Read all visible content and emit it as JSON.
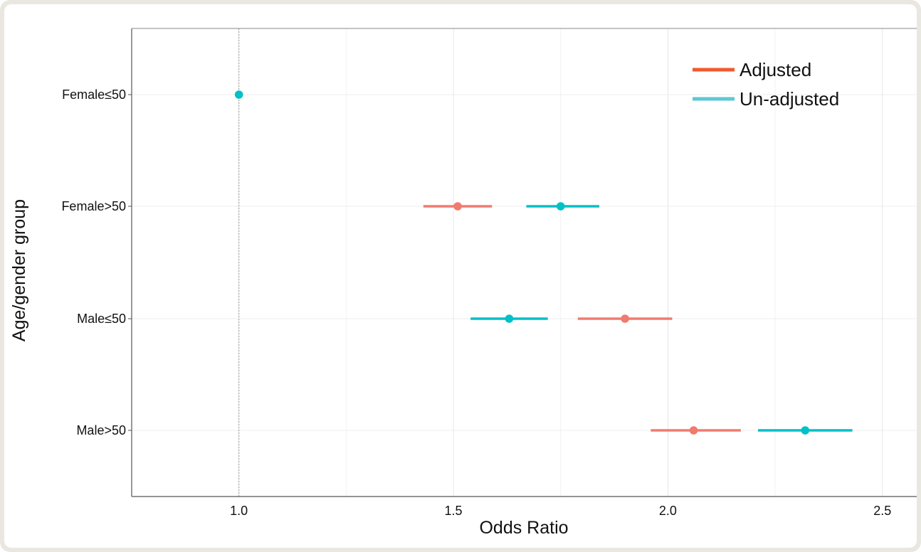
{
  "chart_data": {
    "type": "scatter",
    "subtype": "forest-plot",
    "title": "",
    "xlabel": "Odds Ratio",
    "ylabel": "Age/gender group",
    "xlim": [
      0.75,
      2.58
    ],
    "x_ticks": [
      1.0,
      1.5,
      2.0,
      2.5
    ],
    "x_tick_labels": [
      "1.0",
      "1.5",
      "2.0",
      "2.5"
    ],
    "categories": [
      "Female≤50",
      "Female>50",
      "Male≤50",
      "Male>50"
    ],
    "reference_line": 1.0,
    "grid": true,
    "legend": {
      "position": "top-right",
      "entries": [
        "Adjusted",
        "Un-adjusted"
      ]
    },
    "series": [
      {
        "name": "Adjusted",
        "color": "#f07b6e",
        "legend_color": "#ef5a2f",
        "points": [
          {
            "category": "Female>50",
            "or": 1.51,
            "lower": 1.43,
            "upper": 1.59
          },
          {
            "category": "Male≤50",
            "or": 1.9,
            "lower": 1.79,
            "upper": 2.01
          },
          {
            "category": "Male>50",
            "or": 2.06,
            "lower": 1.96,
            "upper": 2.17
          }
        ]
      },
      {
        "name": "Un-adjusted",
        "color": "#00c0c8",
        "legend_color": "#5ec6d4",
        "points": [
          {
            "category": "Female≤50",
            "or": 1.0,
            "lower": 1.0,
            "upper": 1.0
          },
          {
            "category": "Female>50",
            "or": 1.75,
            "lower": 1.67,
            "upper": 1.84
          },
          {
            "category": "Male≤50",
            "or": 1.63,
            "lower": 1.54,
            "upper": 1.72
          },
          {
            "category": "Male>50",
            "or": 2.32,
            "lower": 2.21,
            "upper": 2.43
          }
        ]
      }
    ]
  }
}
